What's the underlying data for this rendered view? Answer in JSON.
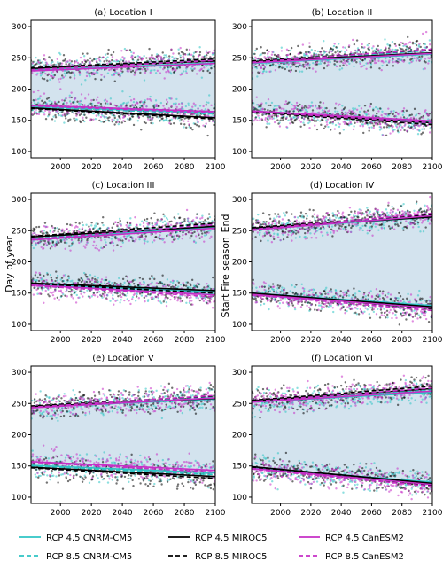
{
  "chart_data": {
    "type": "scatter",
    "ylabel": "Day of year",
    "side_labels": [
      "Start",
      "Fire season",
      "End"
    ],
    "xlim": [
      1981,
      2100
    ],
    "ylim": [
      90,
      310
    ],
    "xticks": [
      2000,
      2020,
      2040,
      2060,
      2080,
      2100
    ],
    "yticks": [
      100,
      150,
      200,
      250,
      300
    ],
    "band_color": "#d3e3ee",
    "series_styles": [
      {
        "name": "RCP 4.5 CNRM-CM5",
        "color": "#2ec4c4",
        "dash": "solid"
      },
      {
        "name": "RCP 8.5 CNRM-CM5",
        "color": "#2ec4c4",
        "dash": "dashed"
      },
      {
        "name": "RCP 4.5 MIROC5",
        "color": "#000000",
        "dash": "solid"
      },
      {
        "name": "RCP 8.5 MIROC5",
        "color": "#000000",
        "dash": "dashed"
      },
      {
        "name": "RCP 4.5 CanESM2",
        "color": "#c62fc6",
        "dash": "solid"
      },
      {
        "name": "RCP 8.5 CanESM2",
        "color": "#c62fc6",
        "dash": "dashed"
      }
    ],
    "panels": [
      {
        "title": "(a) Location I",
        "end_trend": {
          "x": [
            1981,
            2100
          ],
          "cnrm45": [
            230,
            242
          ],
          "cnrm85": [
            232,
            248
          ],
          "miroc45": [
            233,
            245
          ],
          "miroc85": [
            234,
            248
          ],
          "can45": [
            229,
            241
          ],
          "can85": [
            231,
            246
          ]
        },
        "start_trend": {
          "x": [
            1981,
            2100
          ],
          "cnrm45": [
            172,
            162
          ],
          "cnrm85": [
            171,
            160
          ],
          "miroc45": [
            170,
            154
          ],
          "miroc85": [
            169,
            152
          ],
          "can45": [
            174,
            164
          ],
          "can85": [
            173,
            162
          ]
        }
      },
      {
        "title": "(b) Location II",
        "end_trend": {
          "x": [
            1981,
            2100
          ],
          "cnrm45": [
            241,
            256
          ],
          "cnrm85": [
            242,
            262
          ],
          "miroc45": [
            244,
            258
          ],
          "miroc85": [
            245,
            263
          ],
          "can45": [
            242,
            257
          ],
          "can85": [
            243,
            264
          ]
        },
        "start_trend": {
          "x": [
            1981,
            2100
          ],
          "cnrm45": [
            164,
            148
          ],
          "cnrm85": [
            163,
            145
          ],
          "miroc45": [
            164,
            146
          ],
          "miroc85": [
            163,
            143
          ],
          "can45": [
            165,
            149
          ],
          "can85": [
            164,
            146
          ]
        }
      },
      {
        "title": "(c) Location III",
        "end_trend": {
          "x": [
            1981,
            2100
          ],
          "cnrm45": [
            236,
            256
          ],
          "cnrm85": [
            237,
            261
          ],
          "miroc45": [
            240,
            257
          ],
          "miroc85": [
            241,
            262
          ],
          "can45": [
            235,
            254
          ],
          "can85": [
            236,
            260
          ]
        },
        "start_trend": {
          "x": [
            1981,
            2100
          ],
          "cnrm45": [
            164,
            152
          ],
          "cnrm85": [
            163,
            149
          ],
          "miroc45": [
            166,
            154
          ],
          "miroc85": [
            165,
            150
          ],
          "can45": [
            163,
            147
          ],
          "can85": [
            162,
            144
          ]
        }
      },
      {
        "title": "(d) Location IV",
        "end_trend": {
          "x": [
            1981,
            2100
          ],
          "cnrm45": [
            252,
            272
          ],
          "cnrm85": [
            253,
            276
          ],
          "miroc45": [
            254,
            272
          ],
          "miroc85": [
            255,
            276
          ],
          "can45": [
            251,
            274
          ],
          "can85": [
            252,
            278
          ]
        },
        "start_trend": {
          "x": [
            1981,
            2100
          ],
          "cnrm45": [
            150,
            130
          ],
          "cnrm85": [
            149,
            127
          ],
          "miroc45": [
            150,
            128
          ],
          "miroc85": [
            149,
            125
          ],
          "can45": [
            148,
            126
          ],
          "can85": [
            147,
            122
          ]
        }
      },
      {
        "title": "(e) Location V",
        "end_trend": {
          "x": [
            1981,
            2100
          ],
          "cnrm45": [
            244,
            257
          ],
          "cnrm85": [
            245,
            261
          ],
          "miroc45": [
            245,
            258
          ],
          "miroc85": [
            246,
            262
          ],
          "can45": [
            243,
            259
          ],
          "can85": [
            244,
            263
          ]
        },
        "start_trend": {
          "x": [
            1981,
            2100
          ],
          "cnrm45": [
            151,
            139
          ],
          "cnrm85": [
            150,
            136
          ],
          "miroc45": [
            148,
            133
          ],
          "miroc85": [
            147,
            130
          ],
          "can45": [
            157,
            143
          ],
          "can85": [
            156,
            140
          ]
        }
      },
      {
        "title": "(f) Location VI",
        "end_trend": {
          "x": [
            1981,
            2100
          ],
          "cnrm45": [
            252,
            268
          ],
          "cnrm85": [
            253,
            272
          ],
          "miroc45": [
            254,
            274
          ],
          "miroc85": [
            255,
            278
          ],
          "can45": [
            252,
            270
          ],
          "can85": [
            253,
            275
          ]
        },
        "start_trend": {
          "x": [
            1981,
            2100
          ],
          "cnrm45": [
            147,
            124
          ],
          "cnrm85": [
            146,
            121
          ],
          "miroc45": [
            149,
            122
          ],
          "miroc85": [
            148,
            119
          ],
          "can45": [
            146,
            120
          ],
          "can85": [
            145,
            117
          ]
        }
      }
    ],
    "scatter_spread_days": 22,
    "series_keys": [
      "cnrm45",
      "cnrm85",
      "miroc45",
      "miroc85",
      "can45",
      "can85"
    ]
  }
}
